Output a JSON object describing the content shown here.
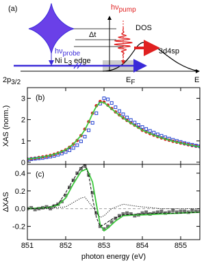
{
  "schematic": {
    "panel": "(a)",
    "pump": {
      "main": "hν",
      "sub": "pump"
    },
    "delay": "Δt",
    "dos": "DOS",
    "band": "3d4sp",
    "probe": {
      "main": "hν",
      "sub": "probe"
    },
    "edge": {
      "main": "Ni L",
      "sub": "3",
      "tail": " edge"
    },
    "core": {
      "main": "2p",
      "sub": "3/2"
    },
    "fermi": {
      "main": "E",
      "sub": "F"
    },
    "energy": "E"
  },
  "chart_data": [
    {
      "type": "line",
      "panel": "(b)",
      "ylabel": "XAS (norm.)",
      "xlim": [
        851,
        855.5
      ],
      "xticks": [
        851,
        852,
        853,
        854,
        855
      ],
      "ylim": [
        -0.1,
        3.5
      ],
      "yticks": [
        0,
        1,
        2,
        3
      ],
      "series": [
        {
          "kind": "scatter",
          "marker": "circle",
          "color": "#d42020",
          "x": [
            851.0,
            851.1,
            851.2,
            851.3,
            851.4,
            851.5,
            851.6,
            851.7,
            851.8,
            851.9,
            852.0,
            852.1,
            852.2,
            852.3,
            852.4,
            852.5,
            852.6,
            852.7,
            852.8,
            852.9,
            853.0,
            853.1,
            853.2,
            853.3,
            853.4,
            853.5,
            853.6,
            853.7,
            853.8,
            853.9,
            854.0,
            854.1,
            854.2,
            854.3,
            854.4,
            854.5,
            854.6,
            854.7,
            854.8,
            854.9,
            855.0,
            855.1,
            855.2,
            855.3,
            855.4,
            855.5
          ],
          "values": [
            0.15,
            0.17,
            0.19,
            0.22,
            0.25,
            0.28,
            0.32,
            0.37,
            0.43,
            0.5,
            0.58,
            0.7,
            0.85,
            1.02,
            1.25,
            1.55,
            1.9,
            2.3,
            2.65,
            2.85,
            2.82,
            2.68,
            2.52,
            2.36,
            2.22,
            2.08,
            1.96,
            1.85,
            1.74,
            1.64,
            1.5,
            1.42,
            1.34,
            1.27,
            1.2,
            1.14,
            1.08,
            1.03,
            0.98,
            0.94,
            0.9,
            0.86,
            0.82,
            0.78,
            0.75,
            0.72
          ]
        },
        {
          "kind": "scatter",
          "marker": "square",
          "color": "#2040d0",
          "x": [
            851.0,
            851.1,
            851.2,
            851.3,
            851.4,
            851.5,
            851.6,
            851.7,
            851.8,
            851.9,
            852.0,
            852.1,
            852.2,
            852.3,
            852.4,
            852.5,
            852.6,
            852.7,
            852.8,
            852.9,
            853.0,
            853.1,
            853.2,
            853.3,
            853.4,
            853.5,
            853.6,
            853.7,
            853.8,
            853.9,
            854.0,
            854.1,
            854.2,
            854.3,
            854.4,
            854.5,
            854.6,
            854.7,
            854.8,
            854.9,
            855.0,
            855.1,
            855.2,
            855.3,
            855.4,
            855.5
          ],
          "values": [
            0.12,
            0.14,
            0.16,
            0.18,
            0.2,
            0.23,
            0.26,
            0.3,
            0.35,
            0.41,
            0.48,
            0.56,
            0.67,
            0.8,
            0.98,
            1.2,
            1.5,
            1.85,
            2.3,
            2.75,
            3.0,
            2.95,
            2.78,
            2.58,
            2.4,
            2.25,
            2.1,
            1.98,
            1.86,
            1.75,
            1.65,
            1.56,
            1.47,
            1.39,
            1.31,
            1.24,
            1.17,
            1.11,
            1.05,
            1.0,
            0.95,
            0.9,
            0.86,
            0.82,
            0.78,
            0.75
          ]
        },
        {
          "kind": "line",
          "color": "#3cc83c",
          "x": [
            851,
            851.2,
            851.4,
            851.6,
            851.8,
            852,
            852.2,
            852.4,
            852.5,
            852.6,
            852.7,
            852.8,
            852.9,
            853,
            853.2,
            853.4,
            853.6,
            853.8,
            854,
            854.4,
            854.8,
            855.2,
            855.5
          ],
          "values": [
            0.15,
            0.19,
            0.25,
            0.32,
            0.43,
            0.58,
            0.85,
            1.25,
            1.52,
            1.88,
            2.28,
            2.62,
            2.82,
            2.8,
            2.5,
            2.2,
            1.95,
            1.73,
            1.5,
            1.2,
            0.98,
            0.82,
            0.72
          ]
        }
      ]
    },
    {
      "type": "line",
      "panel": "(c)",
      "ylabel": "ΔXAS",
      "xlabel": "photon energy (eV)",
      "xlim": [
        851,
        855.5
      ],
      "xticks": [
        851,
        852,
        853,
        854,
        855
      ],
      "ylim": [
        -0.35,
        0.5
      ],
      "yticks": [
        -0.2,
        {
          "value": 0,
          "label": "0.0"
        },
        0.2,
        0.4
      ],
      "reference_line": 0,
      "series": [
        {
          "kind": "scatter",
          "marker": "filled-square",
          "color": "#707070",
          "x": [
            851.0,
            851.1,
            851.2,
            851.3,
            851.4,
            851.5,
            851.6,
            851.7,
            851.8,
            851.9,
            852.0,
            852.1,
            852.2,
            852.3,
            852.4,
            852.5,
            852.6,
            852.7,
            852.8,
            852.9,
            853.0,
            853.1,
            853.2,
            853.3,
            853.4,
            853.5,
            853.6,
            853.7,
            853.8,
            853.9,
            854.0,
            854.1,
            854.2,
            854.3,
            854.4,
            854.5,
            854.6,
            854.7,
            854.8,
            854.9,
            855.0,
            855.1,
            855.2,
            855.3,
            855.4,
            855.5
          ],
          "values": [
            0.0,
            0.01,
            -0.01,
            0.0,
            0.01,
            0.02,
            0.0,
            0.03,
            0.05,
            0.08,
            0.15,
            0.24,
            0.32,
            0.4,
            0.45,
            0.48,
            0.38,
            0.18,
            -0.05,
            -0.2,
            -0.23,
            -0.2,
            -0.15,
            -0.11,
            -0.08,
            -0.06,
            -0.05,
            -0.06,
            -0.08,
            -0.07,
            -0.05,
            -0.04,
            -0.06,
            -0.05,
            -0.04,
            -0.03,
            -0.05,
            -0.04,
            -0.02,
            -0.04,
            -0.03,
            -0.03,
            -0.04,
            -0.02,
            -0.03,
            -0.03
          ]
        },
        {
          "kind": "line",
          "color": "#3cc83c",
          "x": [
            851,
            851.5,
            851.8,
            852,
            852.2,
            852.4,
            852.55,
            852.7,
            852.8,
            852.9,
            853,
            853.1,
            853.3,
            853.5,
            853.8,
            854,
            854.5,
            855,
            855.5
          ],
          "values": [
            0,
            0.01,
            0.04,
            0.12,
            0.28,
            0.42,
            0.45,
            0.3,
            0.05,
            -0.18,
            -0.25,
            -0.22,
            -0.14,
            -0.08,
            -0.07,
            -0.07,
            -0.06,
            -0.05,
            -0.04
          ]
        },
        {
          "kind": "line",
          "dash": "dashed",
          "color": "#000000",
          "x": [
            851,
            851.5,
            851.8,
            852,
            852.2,
            852.4,
            852.5,
            852.6,
            852.7,
            852.8,
            852.9,
            853,
            853.2,
            853.5,
            854,
            854.5,
            855,
            855.5
          ],
          "values": [
            0,
            0.01,
            0.05,
            0.18,
            0.33,
            0.46,
            0.5,
            0.38,
            0.12,
            -0.1,
            -0.2,
            -0.18,
            -0.12,
            -0.07,
            -0.06,
            -0.05,
            -0.05,
            -0.04
          ]
        },
        {
          "kind": "line",
          "dash": "dotted",
          "color": "#000000",
          "x": [
            851,
            851.5,
            852,
            852.2,
            852.4,
            852.5,
            852.7,
            852.9,
            853,
            853.2,
            853.5,
            853.8,
            854,
            854.5,
            855,
            855.5
          ],
          "values": [
            0,
            0,
            0.02,
            0.07,
            0.12,
            0.13,
            0.02,
            -0.1,
            -0.08,
            0,
            0.05,
            0.03,
            0.02,
            0,
            0,
            0
          ]
        }
      ]
    }
  ]
}
